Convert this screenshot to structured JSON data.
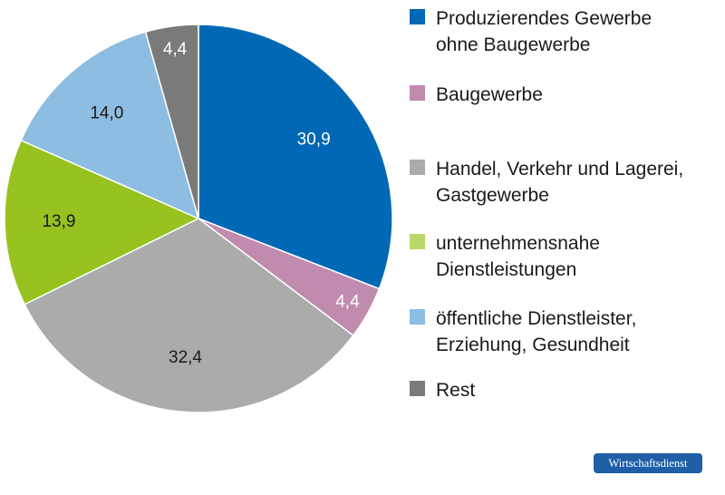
{
  "chart_data": {
    "type": "pie",
    "title": "",
    "slices": [
      {
        "name": "Produzierendes Gewerbe\nohne Baugewerbe",
        "value": 30.9,
        "label": "30,9",
        "color": "#0068b4",
        "label_color": "#ffffff"
      },
      {
        "name": "Baugewerbe",
        "value": 4.4,
        "label": "4,4",
        "color": "#c18bae",
        "label_color": "#ffffff"
      },
      {
        "name": "Handel, Verkehr und Lagerei,\nGastgewerbe",
        "value": 32.4,
        "label": "32,4",
        "color": "#ababab",
        "label_color": "#1a1a1a"
      },
      {
        "name": "unternehmensnahe\nDienstleistungen",
        "value": 13.9,
        "label": "13,9",
        "color": "#97c21f",
        "label_color": "#1a1a1a"
      },
      {
        "name": "öffentliche Dienstleister,\nErziehung, Gesundheit",
        "value": 14.0,
        "label": "14,0",
        "color": "#8dbde0",
        "label_color": "#1a1a1a"
      },
      {
        "name": "Rest",
        "value": 4.4,
        "label": "4,4",
        "color": "#7a7a7a",
        "label_color": "#ffffff"
      }
    ],
    "legend": {
      "placement": "right",
      "items": [
        {
          "label": "Produzierendes Gewerbe\nohne Baugewerbe",
          "color": "#0068b4"
        },
        {
          "label": "Baugewerbe",
          "color": "#c18bae"
        },
        {
          "label": "Handel, Verkehr und Lagerei,\nGastgewerbe",
          "color": "#ababab"
        },
        {
          "label": "unternehmensnahe\nDienstleistungen",
          "color": "#b9d86a"
        },
        {
          "label": "öffentliche Dienstleister,\nErziehung, Gesundheit",
          "color": "#8dbde0"
        },
        {
          "label": "Rest",
          "color": "#7a7a7a"
        }
      ]
    }
  },
  "source_badge": "Wirtschaftsdienst",
  "colors": {
    "badge": "#1f5fa8"
  }
}
